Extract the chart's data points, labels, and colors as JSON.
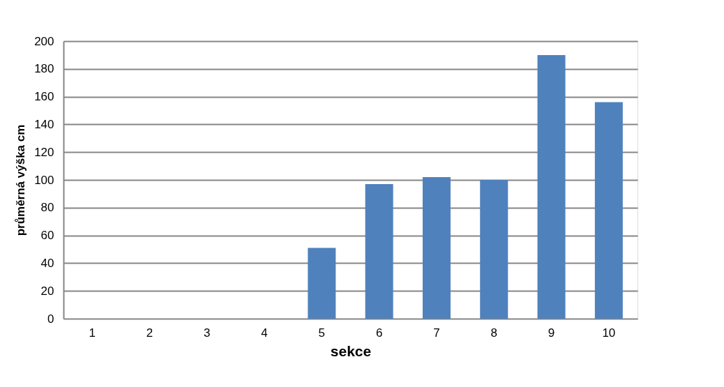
{
  "chart_data": {
    "type": "bar",
    "xlabel": "sekce",
    "ylabel": "průměrná výška cm",
    "categories": [
      "1",
      "2",
      "3",
      "4",
      "5",
      "6",
      "7",
      "8",
      "9",
      "10"
    ],
    "values": [
      0,
      0,
      0,
      0,
      51,
      97,
      102,
      100,
      190,
      156
    ],
    "color": "#4f81bd",
    "ylim": [
      0,
      200
    ],
    "yticks": [
      0,
      20,
      40,
      60,
      80,
      100,
      120,
      140,
      160,
      180,
      200
    ],
    "grid": "y"
  }
}
